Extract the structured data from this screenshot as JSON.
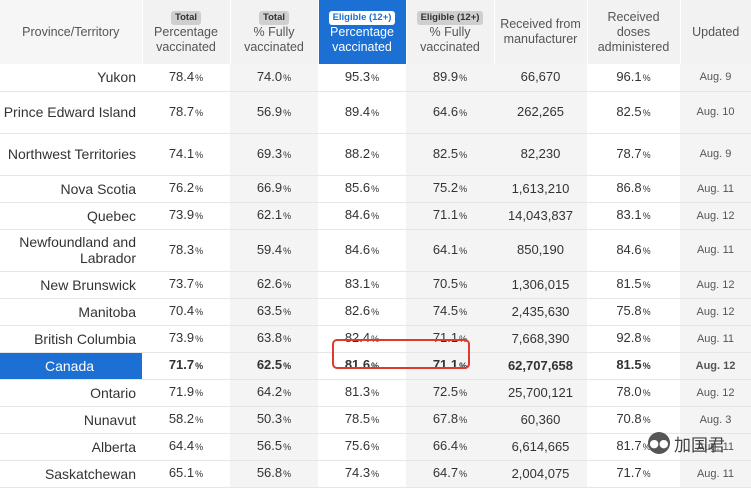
{
  "header": {
    "province": "Province/Territory",
    "total_tag": "Total",
    "eligible_tag": "Eligible (12+)",
    "pct_vaccinated": "Percentage vaccinated",
    "pct_fully": "% Fully vaccinated",
    "received": "Received from manufacturer",
    "administered": "Received doses administered",
    "updated": "Updated"
  },
  "pct_symbol": "%",
  "rows": [
    {
      "name": "Yukon",
      "t_pv": "78.4",
      "t_fv": "74.0",
      "e_pv": "95.3",
      "e_fv": "89.9",
      "received": "66,670",
      "admin": "96.1",
      "updated": "Aug. 9",
      "tall": false
    },
    {
      "name": "Prince Edward Island",
      "t_pv": "78.7",
      "t_fv": "56.9",
      "e_pv": "89.4",
      "e_fv": "64.6",
      "received": "262,265",
      "admin": "82.5",
      "updated": "Aug. 10",
      "tall": true
    },
    {
      "name": "Northwest Territories",
      "t_pv": "74.1",
      "t_fv": "69.3",
      "e_pv": "88.2",
      "e_fv": "82.5",
      "received": "82,230",
      "admin": "78.7",
      "updated": "Aug. 9",
      "tall": true
    },
    {
      "name": "Nova Scotia",
      "t_pv": "76.2",
      "t_fv": "66.9",
      "e_pv": "85.6",
      "e_fv": "75.2",
      "received": "1,613,210",
      "admin": "86.8",
      "updated": "Aug. 11",
      "tall": false
    },
    {
      "name": "Quebec",
      "t_pv": "73.9",
      "t_fv": "62.1",
      "e_pv": "84.6",
      "e_fv": "71.1",
      "received": "14,043,837",
      "admin": "83.1",
      "updated": "Aug. 12",
      "tall": false
    },
    {
      "name": "Newfoundland and Labrador",
      "t_pv": "78.3",
      "t_fv": "59.4",
      "e_pv": "84.6",
      "e_fv": "64.1",
      "received": "850,190",
      "admin": "84.6",
      "updated": "Aug. 11",
      "tall": true
    },
    {
      "name": "New Brunswick",
      "t_pv": "73.7",
      "t_fv": "62.6",
      "e_pv": "83.1",
      "e_fv": "70.5",
      "received": "1,306,015",
      "admin": "81.5",
      "updated": "Aug. 12",
      "tall": false
    },
    {
      "name": "Manitoba",
      "t_pv": "70.4",
      "t_fv": "63.5",
      "e_pv": "82.6",
      "e_fv": "74.5",
      "received": "2,435,630",
      "admin": "75.8",
      "updated": "Aug. 12",
      "tall": false
    },
    {
      "name": "British Columbia",
      "t_pv": "73.9",
      "t_fv": "63.8",
      "e_pv": "82.4",
      "e_fv": "71.1",
      "received": "7,668,390",
      "admin": "92.8",
      "updated": "Aug. 11",
      "tall": false
    },
    {
      "name": "Canada",
      "t_pv": "71.7",
      "t_fv": "62.5",
      "e_pv": "81.6",
      "e_fv": "71.1",
      "received": "62,707,658",
      "admin": "81.5",
      "updated": "Aug. 12",
      "tall": false,
      "highlight": true
    },
    {
      "name": "Ontario",
      "t_pv": "71.9",
      "t_fv": "64.2",
      "e_pv": "81.3",
      "e_fv": "72.5",
      "received": "25,700,121",
      "admin": "78.0",
      "updated": "Aug. 12",
      "tall": false
    },
    {
      "name": "Nunavut",
      "t_pv": "58.2",
      "t_fv": "50.3",
      "e_pv": "78.5",
      "e_fv": "67.8",
      "received": "60,360",
      "admin": "70.8",
      "updated": "Aug. 3",
      "tall": false
    },
    {
      "name": "Alberta",
      "t_pv": "64.4",
      "t_fv": "56.5",
      "e_pv": "75.6",
      "e_fv": "66.4",
      "received": "6,614,665",
      "admin": "81.7",
      "updated": "Aug. 11",
      "tall": false
    },
    {
      "name": "Saskatchewan",
      "t_pv": "65.1",
      "t_fv": "56.8",
      "e_pv": "74.3",
      "e_fv": "64.7",
      "received": "2,004,075",
      "admin": "71.7",
      "updated": "Aug. 11",
      "tall": false
    }
  ],
  "watermark": {
    "icon": "chat-bubble-icon",
    "text": "加国君"
  }
}
